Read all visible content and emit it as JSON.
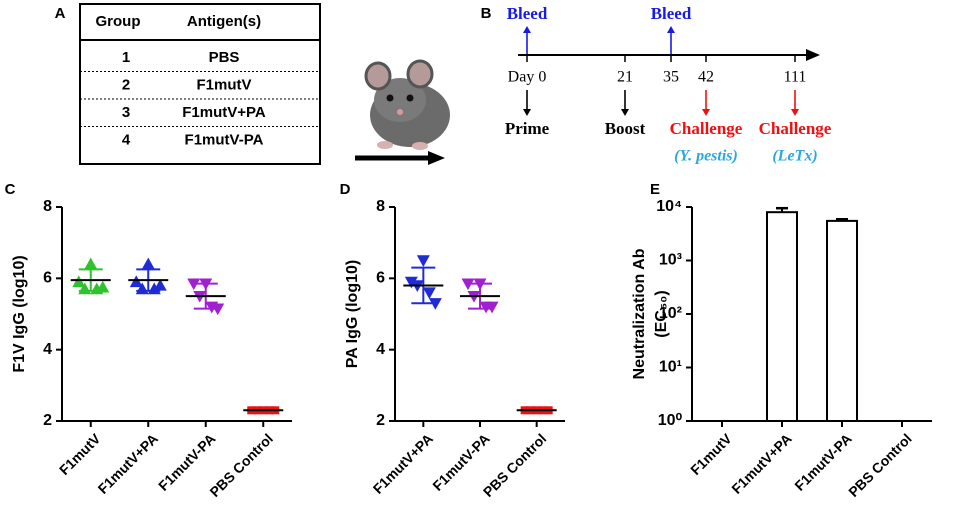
{
  "table_panel": {
    "label": "A",
    "header": [
      "Group",
      "Antigen(s)"
    ],
    "rows": [
      [
        "1",
        "PBS"
      ],
      [
        "2",
        "F1mutV"
      ],
      [
        "3",
        "F1mutV+PA"
      ],
      [
        "4",
        "F1mutV-PA"
      ]
    ]
  },
  "timeline_panel": {
    "label": "B",
    "points": [
      {
        "day": "Day 0",
        "bleed": "Bleed",
        "event": "Prime"
      },
      {
        "day": "21",
        "event": "Boost"
      },
      {
        "day": "35",
        "bleed": "Bleed"
      },
      {
        "day": "42",
        "event": "Challenge",
        "agent": "(Y. pestis)"
      },
      {
        "day": "111",
        "event": "Challenge",
        "agent": "(LeTx)"
      }
    ]
  },
  "chart_data": [
    {
      "type": "dot",
      "label": "C",
      "y_label": "F1V IgG (log10)",
      "categories": [
        "F1mutV",
        "F1mutV+PA",
        "F1mutV-PA",
        "PBS Control"
      ],
      "ylim": [
        2,
        8
      ],
      "yticks": [
        2,
        4,
        6,
        8
      ],
      "groups": [
        {
          "color": "#2ec22e",
          "marker": "triangle-up",
          "points": [
            6.4,
            5.9,
            5.7,
            5.7,
            5.75
          ],
          "mean": 5.95,
          "sd": 0.3
        },
        {
          "color": "#1f2bd6",
          "marker": "triangle-up",
          "points": [
            6.4,
            5.9,
            5.7,
            5.7,
            5.8
          ],
          "mean": 5.95,
          "sd": 0.3
        },
        {
          "color": "#a020d0",
          "marker": "triangle-down",
          "points": [
            5.85,
            5.85,
            5.5,
            5.2,
            5.15
          ],
          "mean": 5.5,
          "sd": 0.35
        },
        {
          "color": "#ee1111",
          "marker": "square",
          "points": [
            2.3,
            2.3,
            2.3,
            2.3,
            2.3
          ],
          "mean": 2.3,
          "sd": 0
        }
      ]
    },
    {
      "type": "dot",
      "label": "D",
      "y_label": "PA IgG (log10)",
      "categories": [
        "F1mutV+PA",
        "F1mutV-PA",
        "PBS Control"
      ],
      "ylim": [
        2,
        8
      ],
      "yticks": [
        2,
        4,
        6,
        8
      ],
      "groups": [
        {
          "color": "#1f2bd6",
          "marker": "triangle-down",
          "points": [
            6.5,
            5.9,
            5.8,
            5.6,
            5.3
          ],
          "mean": 5.8,
          "sd": 0.5
        },
        {
          "color": "#a020d0",
          "marker": "triangle-down",
          "points": [
            5.85,
            5.85,
            5.5,
            5.2,
            5.2
          ],
          "mean": 5.5,
          "sd": 0.35
        },
        {
          "color": "#ee1111",
          "marker": "square",
          "points": [
            2.3,
            2.3,
            2.3,
            2.3,
            2.3
          ],
          "mean": 2.3,
          "sd": 0
        }
      ]
    },
    {
      "type": "bar",
      "label": "E",
      "y_label": [
        "Neutralization Ab",
        "(EC₅₀)"
      ],
      "categories": [
        "F1mutV",
        "F1mutV+PA",
        "F1mutV-PA",
        "PBS Control"
      ],
      "values": [
        null,
        8000,
        5500,
        null
      ],
      "errors": [
        null,
        1500,
        400,
        null
      ],
      "color": "#ffffff",
      "log_scale": true,
      "ylim": [
        1,
        10000
      ],
      "yticks": [
        {
          "value": 1,
          "label": "10⁰"
        },
        {
          "value": 10,
          "label": "10¹"
        },
        {
          "value": 100,
          "label": "10²"
        },
        {
          "value": 1000,
          "label": "10³"
        },
        {
          "value": 10000,
          "label": "10⁴"
        }
      ]
    }
  ]
}
